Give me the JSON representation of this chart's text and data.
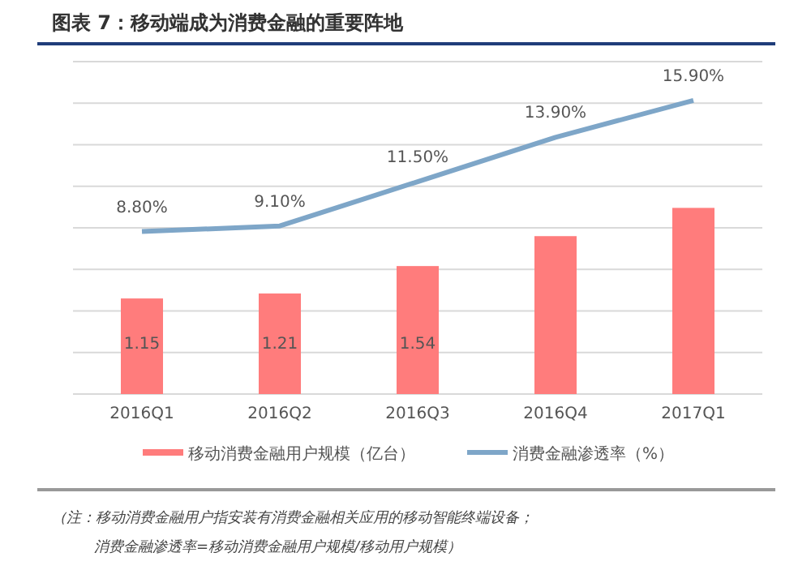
{
  "chart_data": {
    "type": "bar",
    "title": "图表 7：移动端成为消费金融的重要阵地",
    "categories": [
      "2016Q1",
      "2016Q2",
      "2016Q3",
      "2016Q4",
      "2017Q1"
    ],
    "series": [
      {
        "name": "移动消费金融用户规模（亿台）",
        "color": "#ff7c7c",
        "values": [
          1.15,
          1.21,
          1.54,
          1.9,
          2.24
        ],
        "value_labels": [
          "1.15",
          "1.21",
          "1.54",
          null,
          null
        ]
      },
      {
        "name": "消费金融渗透率（%）",
        "type": "line",
        "axis": "y2",
        "color": "#7ea6c8",
        "values": [
          8.8,
          9.1,
          11.5,
          13.9,
          15.9
        ],
        "value_labels": [
          "8.80%",
          "9.10%",
          "11.50%",
          "13.90%",
          "15.90%"
        ]
      }
    ],
    "ylim": [
      0,
      4
    ],
    "yticks": [
      {
        "value": 0,
        "label": null
      },
      {
        "value": 0.5,
        "label": null
      },
      {
        "value": 1,
        "label": null
      },
      {
        "value": 1.5,
        "label": null
      },
      {
        "value": 2,
        "label": null
      },
      {
        "value": 2.5,
        "label": null
      },
      {
        "value": 3,
        "label": null
      },
      {
        "value": 3.5,
        "label": null
      },
      {
        "value": 4,
        "label": null
      }
    ],
    "y2lim": [
      0,
      18
    ],
    "grid": "y",
    "legend": "bottom",
    "tick_labels": "x",
    "marker": "none",
    "line_style": "solid",
    "annotations": [
      "（注：移动消费金融用户指安装有消费金融相关应用的移动智能终端设备；",
      "消费金融渗透率=移动消费金融用户规模/移动用户规模）"
    ]
  }
}
